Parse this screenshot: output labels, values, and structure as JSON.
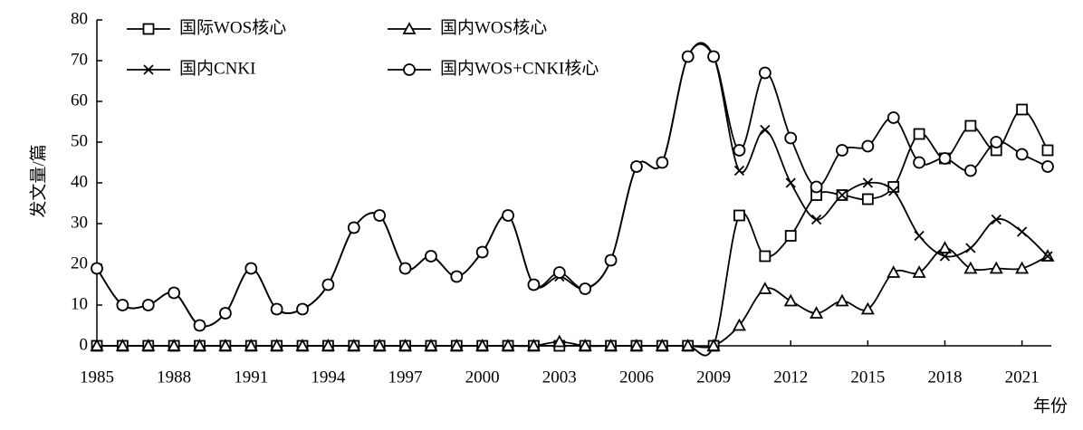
{
  "chart_data": {
    "type": "line",
    "x": [
      1985,
      1986,
      1987,
      1988,
      1989,
      1990,
      1991,
      1992,
      1993,
      1994,
      1995,
      1996,
      1997,
      1998,
      1999,
      2000,
      2001,
      2002,
      2003,
      2004,
      2005,
      2006,
      2007,
      2008,
      2009,
      2010,
      2011,
      2012,
      2013,
      2014,
      2015,
      2016,
      2017,
      2018,
      2019,
      2020,
      2021,
      2022
    ],
    "series": [
      {
        "name": "国际WOS核心",
        "color": "#000000",
        "marker": "square",
        "values": [
          0,
          0,
          0,
          0,
          0,
          0,
          0,
          0,
          0,
          0,
          0,
          0,
          0,
          0,
          0,
          0,
          0,
          0,
          0,
          0,
          0,
          0,
          0,
          0,
          0,
          32,
          22,
          27,
          37,
          37,
          36,
          39,
          52,
          46,
          54,
          48,
          58,
          48
        ]
      },
      {
        "name": "国内WOS核心",
        "color": "#000000",
        "marker": "triangle",
        "values": [
          0,
          0,
          0,
          0,
          0,
          0,
          0,
          0,
          0,
          0,
          0,
          0,
          0,
          0,
          0,
          0,
          0,
          0,
          1,
          0,
          0,
          0,
          0,
          0,
          0,
          5,
          14,
          11,
          8,
          11,
          9,
          18,
          18,
          24,
          19,
          19,
          19,
          22
        ]
      },
      {
        "name": "国内CNKI",
        "color": "#000000",
        "marker": "x",
        "values": [
          19,
          10,
          10,
          13,
          5,
          8,
          19,
          9,
          9,
          15,
          29,
          32,
          19,
          22,
          17,
          23,
          32,
          15,
          17,
          14,
          21,
          44,
          45,
          71,
          71,
          43,
          53,
          40,
          31,
          37,
          40,
          38,
          27,
          22,
          24,
          31,
          28,
          22
        ]
      },
      {
        "name": "国内WOS+CNKI核心",
        "color": "#000000",
        "marker": "circle",
        "values": [
          19,
          10,
          10,
          13,
          5,
          8,
          19,
          9,
          9,
          15,
          29,
          32,
          19,
          22,
          17,
          23,
          32,
          15,
          18,
          14,
          21,
          44,
          45,
          71,
          71,
          48,
          67,
          51,
          39,
          48,
          49,
          56,
          45,
          46,
          43,
          50,
          47,
          44
        ]
      }
    ],
    "xlim": [
      1985,
      2022
    ],
    "xticks": [
      1985,
      1988,
      1991,
      1994,
      1997,
      2000,
      2003,
      2006,
      2009,
      2012,
      2015,
      2018,
      2021
    ],
    "ylim": [
      0,
      80
    ],
    "yticks": [
      0,
      10,
      20,
      30,
      40,
      50,
      60,
      70,
      80
    ],
    "x_label": "年份",
    "y_label": "发文量/篇",
    "legend": "top"
  }
}
